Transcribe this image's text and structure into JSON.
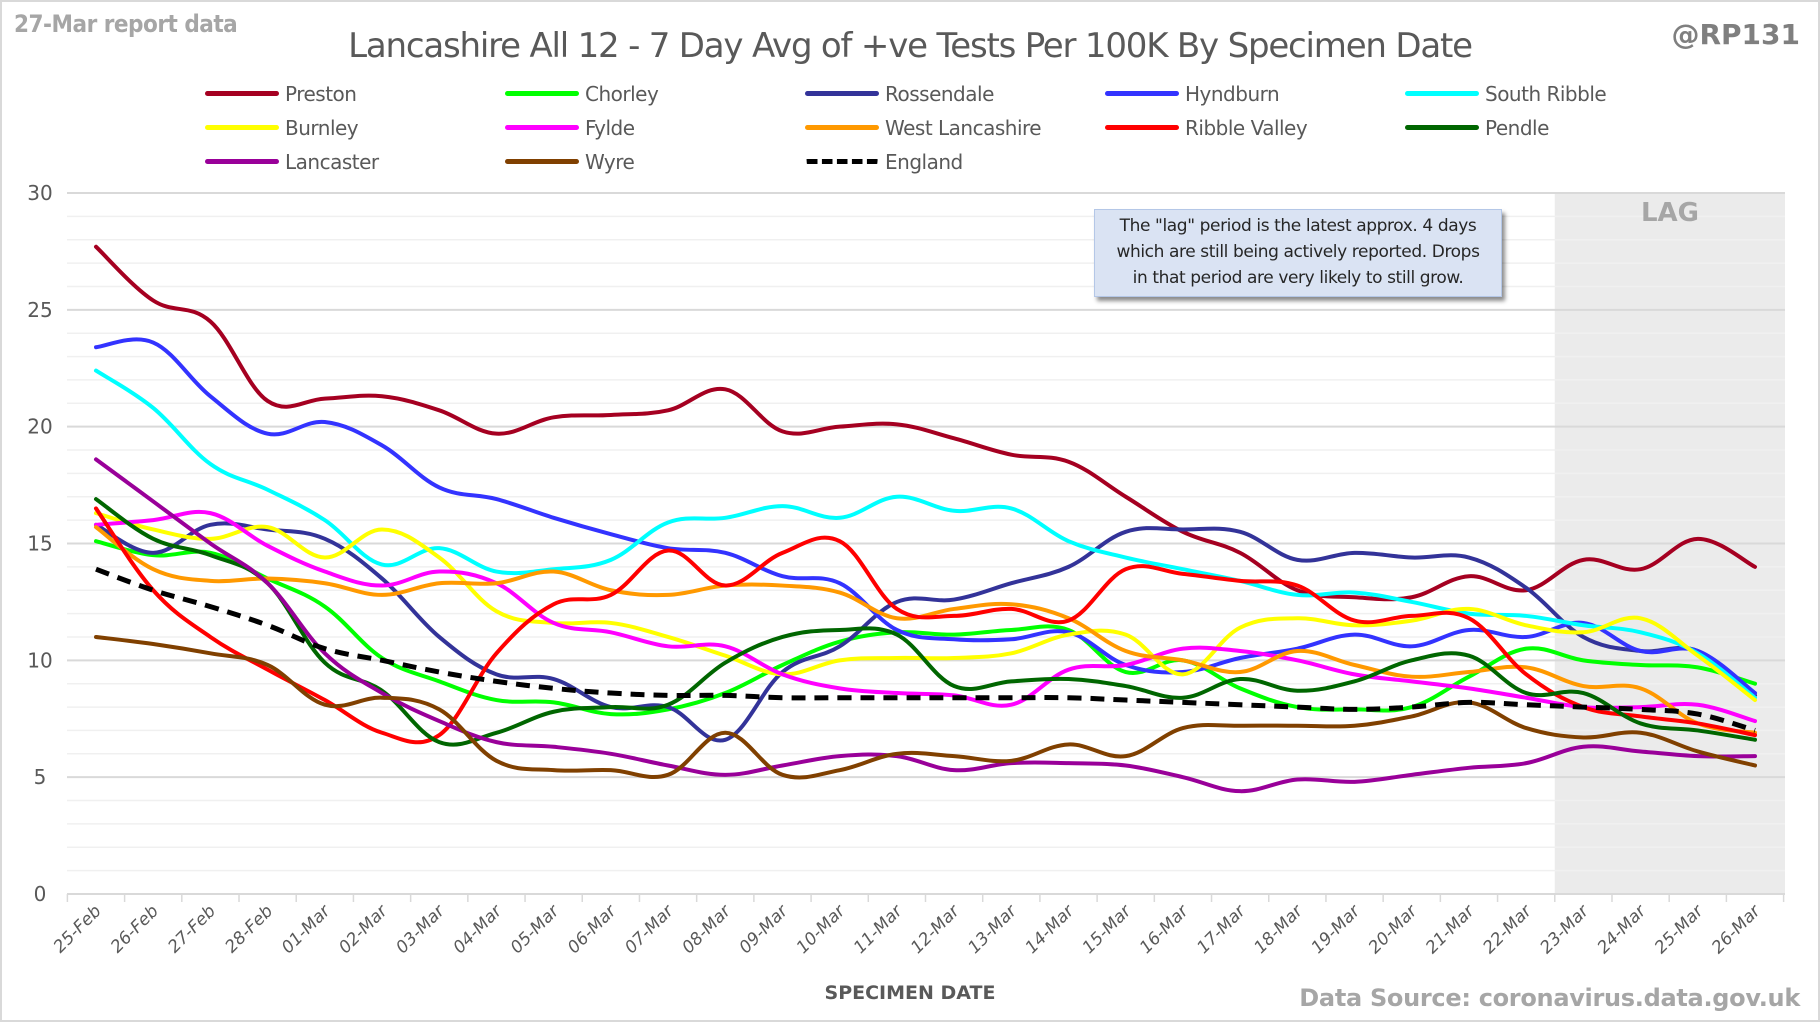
{
  "header": {
    "report_label": "27-Mar report data",
    "handle": "@RP131",
    "title": "Lancashire All 12 - 7 Day Avg of +ve Tests Per 100K By Specimen Date"
  },
  "annotation": {
    "lines": [
      "The \"lag\" period is the latest approx. 4 days",
      "which are still being actively reported.  Drops",
      "in that period are very likely to still grow."
    ]
  },
  "lag_label": "LAG",
  "footer": {
    "source": "Data Source: coronavirus.data.gov.uk"
  },
  "chart_data": {
    "type": "line",
    "title": "Lancashire All 12 - 7 Day Avg of +ve Tests Per 100K By Specimen Date",
    "xlabel": "SPECIMEN DATE",
    "ylabel": "",
    "ylim": [
      0,
      30
    ],
    "yticks": [
      0,
      5,
      10,
      15,
      20,
      25,
      30
    ],
    "grid": true,
    "legend_position": "top",
    "lag_period": {
      "from": "23-Mar",
      "to": "26-Mar",
      "label": "LAG"
    },
    "categories": [
      "25-Feb",
      "26-Feb",
      "27-Feb",
      "28-Feb",
      "01-Mar",
      "02-Mar",
      "03-Mar",
      "04-Mar",
      "05-Mar",
      "06-Mar",
      "07-Mar",
      "08-Mar",
      "09-Mar",
      "10-Mar",
      "11-Mar",
      "12-Mar",
      "13-Mar",
      "14-Mar",
      "15-Mar",
      "16-Mar",
      "17-Mar",
      "18-Mar",
      "19-Mar",
      "20-Mar",
      "21-Mar",
      "22-Mar",
      "23-Mar",
      "24-Mar",
      "25-Mar",
      "26-Mar"
    ],
    "series": [
      {
        "name": "Preston",
        "color": "#a50021",
        "dashed": false,
        "values": [
          27.7,
          25.4,
          24.5,
          21.1,
          21.2,
          21.3,
          20.7,
          19.7,
          20.4,
          20.5,
          20.7,
          21.6,
          19.8,
          20.0,
          20.1,
          19.5,
          18.8,
          18.5,
          17.0,
          15.5,
          14.6,
          13.0,
          12.7,
          12.7,
          13.6,
          13.0,
          14.3,
          13.9,
          15.2,
          14.0
        ]
      },
      {
        "name": "Chorley",
        "color": "#00ff00",
        "dashed": false,
        "values": [
          15.1,
          14.5,
          14.6,
          13.5,
          12.3,
          10.1,
          9.1,
          8.3,
          8.2,
          7.7,
          7.9,
          8.6,
          9.8,
          10.8,
          11.2,
          11.1,
          11.3,
          11.3,
          9.5,
          10.0,
          8.8,
          8.0,
          7.9,
          8.0,
          9.3,
          10.5,
          10.0,
          9.8,
          9.7,
          9.0
        ]
      },
      {
        "name": "Rossendale",
        "color": "#333399",
        "dashed": false,
        "values": [
          15.8,
          14.6,
          15.8,
          15.6,
          15.2,
          13.5,
          11.0,
          9.4,
          9.2,
          8.0,
          8.0,
          6.6,
          9.5,
          10.6,
          12.5,
          12.6,
          13.3,
          14.0,
          15.5,
          15.6,
          15.5,
          14.3,
          14.6,
          14.4,
          14.4,
          13.1,
          11.0,
          10.4,
          10.4,
          8.5
        ]
      },
      {
        "name": "Hyndburn",
        "color": "#3333ff",
        "dashed": false,
        "values": [
          23.4,
          23.6,
          21.3,
          19.7,
          20.2,
          19.2,
          17.4,
          16.9,
          16.1,
          15.4,
          14.8,
          14.6,
          13.6,
          13.3,
          11.3,
          10.9,
          10.9,
          11.2,
          9.8,
          9.5,
          10.1,
          10.5,
          11.1,
          10.6,
          11.3,
          11.0,
          11.6,
          10.4,
          10.4,
          8.6
        ]
      },
      {
        "name": "South Ribble",
        "color": "#00ffff",
        "dashed": false,
        "values": [
          22.4,
          20.8,
          18.4,
          17.3,
          16.0,
          14.1,
          14.8,
          13.8,
          13.9,
          14.3,
          15.9,
          16.1,
          16.6,
          16.1,
          17.0,
          16.4,
          16.5,
          15.1,
          14.4,
          13.9,
          13.4,
          12.8,
          12.9,
          12.5,
          12.0,
          11.9,
          11.5,
          11.2,
          10.3,
          8.4
        ]
      },
      {
        "name": "Burnley",
        "color": "#ffff00",
        "dashed": false,
        "values": [
          16.3,
          15.6,
          15.2,
          15.7,
          14.4,
          15.6,
          14.4,
          12.1,
          11.6,
          11.6,
          11.0,
          10.2,
          9.4,
          10.0,
          10.1,
          10.1,
          10.3,
          11.1,
          11.1,
          9.4,
          11.4,
          11.8,
          11.5,
          11.7,
          12.2,
          11.5,
          11.2,
          11.8,
          10.2,
          8.3
        ]
      },
      {
        "name": "Fylde",
        "color": "#ff00ff",
        "dashed": false,
        "values": [
          15.8,
          16.0,
          16.3,
          14.9,
          13.8,
          13.2,
          13.8,
          13.3,
          11.6,
          11.2,
          10.6,
          10.6,
          9.4,
          8.8,
          8.6,
          8.5,
          8.1,
          9.6,
          9.8,
          10.5,
          10.4,
          10.0,
          9.4,
          9.1,
          8.8,
          8.4,
          8.0,
          8.0,
          8.1,
          7.4
        ]
      },
      {
        "name": "West Lancashire",
        "color": "#ff9900",
        "dashed": false,
        "values": [
          15.7,
          13.9,
          13.4,
          13.5,
          13.3,
          12.8,
          13.3,
          13.3,
          13.8,
          13.0,
          12.8,
          13.2,
          13.2,
          12.9,
          11.8,
          12.2,
          12.4,
          11.8,
          10.4,
          10.0,
          9.5,
          10.4,
          9.8,
          9.3,
          9.5,
          9.7,
          8.9,
          8.8,
          7.3,
          6.9
        ]
      },
      {
        "name": "Ribble Valley",
        "color": "#ff0000",
        "dashed": false,
        "values": [
          16.5,
          13.0,
          11.0,
          9.6,
          8.3,
          6.9,
          6.8,
          10.3,
          12.4,
          12.8,
          14.7,
          13.2,
          14.6,
          15.1,
          12.2,
          11.9,
          12.2,
          11.7,
          13.9,
          13.7,
          13.4,
          13.2,
          11.7,
          11.9,
          11.8,
          9.4,
          8.0,
          7.6,
          7.3,
          6.8
        ]
      },
      {
        "name": "Pendle",
        "color": "#006600",
        "dashed": false,
        "values": [
          16.9,
          15.2,
          14.5,
          13.3,
          9.9,
          8.7,
          6.5,
          6.9,
          7.8,
          8.0,
          8.1,
          9.9,
          11.0,
          11.3,
          11.1,
          8.9,
          9.1,
          9.2,
          8.9,
          8.4,
          9.2,
          8.7,
          9.1,
          10.0,
          10.2,
          8.6,
          8.6,
          7.3,
          7.0,
          6.6
        ]
      },
      {
        "name": "Lancaster",
        "color": "#990099",
        "dashed": false,
        "values": [
          18.6,
          16.8,
          15.0,
          13.3,
          10.3,
          8.6,
          7.4,
          6.5,
          6.3,
          6.0,
          5.5,
          5.1,
          5.5,
          5.9,
          5.9,
          5.3,
          5.6,
          5.6,
          5.5,
          5.0,
          4.4,
          4.9,
          4.8,
          5.1,
          5.4,
          5.6,
          6.3,
          6.1,
          5.9,
          5.9
        ]
      },
      {
        "name": "Wyre",
        "color": "#804000",
        "dashed": false,
        "values": [
          11.0,
          10.7,
          10.3,
          9.8,
          8.1,
          8.4,
          7.9,
          5.7,
          5.3,
          5.3,
          5.1,
          6.9,
          5.1,
          5.3,
          6.0,
          5.9,
          5.7,
          6.4,
          5.9,
          7.1,
          7.2,
          7.2,
          7.2,
          7.6,
          8.2,
          7.1,
          6.7,
          6.9,
          6.1,
          5.5
        ]
      },
      {
        "name": "England",
        "color": "#000000",
        "dashed": true,
        "values": [
          13.9,
          13.0,
          12.3,
          11.5,
          10.5,
          10.0,
          9.5,
          9.1,
          8.8,
          8.6,
          8.5,
          8.5,
          8.4,
          8.4,
          8.4,
          8.4,
          8.4,
          8.4,
          8.3,
          8.2,
          8.1,
          8.0,
          7.9,
          8.0,
          8.2,
          8.1,
          8.0,
          7.9,
          7.7,
          7.0
        ]
      }
    ]
  }
}
